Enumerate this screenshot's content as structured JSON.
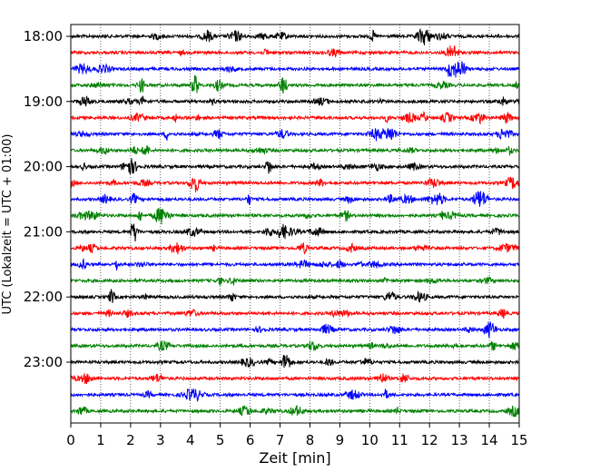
{
  "chart_data": {
    "type": "line",
    "title": "",
    "xlabel": "Zeit  [min]",
    "ylabel": "UTC (Lokalzeit = UTC + 01:00)",
    "xlim": [
      0,
      15
    ],
    "x_ticks": [
      "0",
      "1",
      "2",
      "3",
      "4",
      "5",
      "6",
      "7",
      "8",
      "9",
      "10",
      "11",
      "12",
      "13",
      "14",
      "15"
    ],
    "y_ticks": [
      "18:00",
      "19:00",
      "20:00",
      "21:00",
      "22:00",
      "23:00"
    ],
    "grid": "vertical dotted at every minute",
    "trace_interval_min": 15,
    "trace_colors": [
      "#000000",
      "#ff0000",
      "#0000ff",
      "#008000"
    ],
    "traces": [
      {
        "start": "18:00",
        "color": "#000000"
      },
      {
        "start": "18:15",
        "color": "#ff0000"
      },
      {
        "start": "18:30",
        "color": "#0000ff"
      },
      {
        "start": "18:45",
        "color": "#008000"
      },
      {
        "start": "19:00",
        "color": "#000000"
      },
      {
        "start": "19:15",
        "color": "#ff0000"
      },
      {
        "start": "19:30",
        "color": "#0000ff"
      },
      {
        "start": "19:45",
        "color": "#008000"
      },
      {
        "start": "20:00",
        "color": "#000000"
      },
      {
        "start": "20:15",
        "color": "#ff0000"
      },
      {
        "start": "20:30",
        "color": "#0000ff"
      },
      {
        "start": "20:45",
        "color": "#008000"
      },
      {
        "start": "21:00",
        "color": "#000000"
      },
      {
        "start": "21:15",
        "color": "#ff0000"
      },
      {
        "start": "21:30",
        "color": "#0000ff"
      },
      {
        "start": "21:45",
        "color": "#008000"
      },
      {
        "start": "22:00",
        "color": "#000000"
      },
      {
        "start": "22:15",
        "color": "#ff0000"
      },
      {
        "start": "22:30",
        "color": "#0000ff"
      },
      {
        "start": "22:45",
        "color": "#008000"
      },
      {
        "start": "23:00",
        "color": "#000000"
      },
      {
        "start": "23:15",
        "color": "#ff0000"
      },
      {
        "start": "23:30",
        "color": "#0000ff"
      },
      {
        "start": "23:45",
        "color": "#008000"
      }
    ]
  }
}
